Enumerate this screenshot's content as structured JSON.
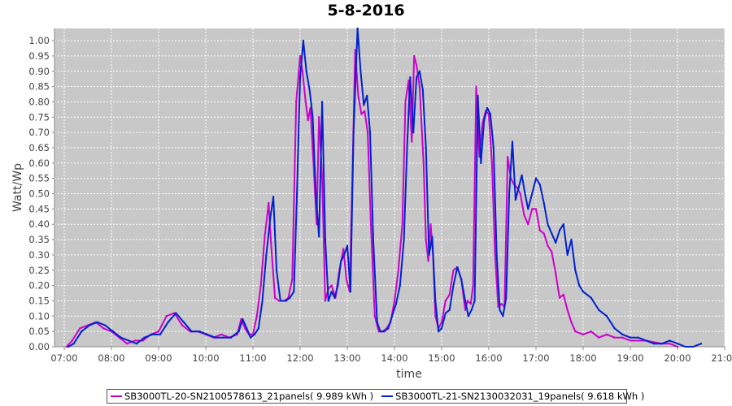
{
  "chart_data": {
    "type": "line",
    "title": "5-8-2016",
    "xlabel": "time",
    "ylabel": "Watt/Wp",
    "xlim": [
      "07:00",
      "21:00"
    ],
    "ylim": [
      0,
      1.04
    ],
    "x_ticks": [
      "07:00",
      "08:00",
      "09:00",
      "10:00",
      "11:00",
      "12:00",
      "13:00",
      "14:00",
      "15:00",
      "16:00",
      "17:00",
      "18:00",
      "19:00",
      "20:00",
      "21:00"
    ],
    "y_ticks": [
      "0.00",
      "0.05",
      "0.10",
      "0.15",
      "0.20",
      "0.25",
      "0.30",
      "0.35",
      "0.40",
      "0.45",
      "0.50",
      "0.55",
      "0.60",
      "0.65",
      "0.70",
      "0.75",
      "0.80",
      "0.85",
      "0.90",
      "0.95",
      "1.00"
    ],
    "grid": true,
    "legend_position": "bottom",
    "plot_background": "#c8c8c8",
    "series": [
      {
        "name": "SB3000TL-20-SN2100578613_21panels",
        "legend_label": "SB3000TL-20-SN2100578613_21panels( 9.989 kWh )",
        "color": "#cc00cc",
        "points": [
          [
            "07:03",
            0.0
          ],
          [
            "07:10",
            0.02
          ],
          [
            "07:20",
            0.06
          ],
          [
            "07:30",
            0.07
          ],
          [
            "07:40",
            0.08
          ],
          [
            "07:50",
            0.06
          ],
          [
            "08:00",
            0.05
          ],
          [
            "08:10",
            0.03
          ],
          [
            "08:20",
            0.01
          ],
          [
            "08:30",
            0.02
          ],
          [
            "08:40",
            0.02
          ],
          [
            "08:50",
            0.04
          ],
          [
            "09:00",
            0.05
          ],
          [
            "09:10",
            0.1
          ],
          [
            "09:20",
            0.11
          ],
          [
            "09:30",
            0.07
          ],
          [
            "09:40",
            0.05
          ],
          [
            "09:50",
            0.05
          ],
          [
            "10:00",
            0.04
          ],
          [
            "10:10",
            0.03
          ],
          [
            "10:20",
            0.04
          ],
          [
            "10:30",
            0.03
          ],
          [
            "10:40",
            0.04
          ],
          [
            "10:45",
            0.09
          ],
          [
            "10:50",
            0.06
          ],
          [
            "10:55",
            0.04
          ],
          [
            "11:00",
            0.04
          ],
          [
            "11:05",
            0.1
          ],
          [
            "11:10",
            0.2
          ],
          [
            "11:15",
            0.36
          ],
          [
            "11:20",
            0.47
          ],
          [
            "11:23",
            0.34
          ],
          [
            "11:28",
            0.16
          ],
          [
            "11:33",
            0.15
          ],
          [
            "11:40",
            0.15
          ],
          [
            "11:45",
            0.16
          ],
          [
            "11:50",
            0.22
          ],
          [
            "11:55",
            0.8
          ],
          [
            "12:00",
            0.95
          ],
          [
            "12:03",
            0.9
          ],
          [
            "12:07",
            0.8
          ],
          [
            "12:10",
            0.74
          ],
          [
            "12:13",
            0.78
          ],
          [
            "12:17",
            0.6
          ],
          [
            "12:21",
            0.4
          ],
          [
            "12:24",
            0.75
          ],
          [
            "12:28",
            0.55
          ],
          [
            "12:32",
            0.15
          ],
          [
            "12:36",
            0.19
          ],
          [
            "12:40",
            0.2
          ],
          [
            "12:45",
            0.16
          ],
          [
            "12:50",
            0.25
          ],
          [
            "12:55",
            0.32
          ],
          [
            "12:59",
            0.22
          ],
          [
            "13:03",
            0.18
          ],
          [
            "13:06",
            0.5
          ],
          [
            "13:10",
            0.97
          ],
          [
            "13:14",
            0.82
          ],
          [
            "13:18",
            0.76
          ],
          [
            "13:22",
            0.77
          ],
          [
            "13:26",
            0.7
          ],
          [
            "13:30",
            0.4
          ],
          [
            "13:35",
            0.1
          ],
          [
            "13:40",
            0.05
          ],
          [
            "13:45",
            0.05
          ],
          [
            "13:50",
            0.06
          ],
          [
            "13:55",
            0.08
          ],
          [
            "14:00",
            0.15
          ],
          [
            "14:05",
            0.25
          ],
          [
            "14:10",
            0.4
          ],
          [
            "14:14",
            0.8
          ],
          [
            "14:18",
            0.87
          ],
          [
            "14:22",
            0.67
          ],
          [
            "14:25",
            0.95
          ],
          [
            "14:28",
            0.92
          ],
          [
            "14:32",
            0.85
          ],
          [
            "14:37",
            0.6
          ],
          [
            "14:40",
            0.35
          ],
          [
            "14:43",
            0.28
          ],
          [
            "14:46",
            0.4
          ],
          [
            "14:49",
            0.3
          ],
          [
            "14:52",
            0.1
          ],
          [
            "14:56",
            0.06
          ],
          [
            "15:00",
            0.08
          ],
          [
            "15:05",
            0.15
          ],
          [
            "15:10",
            0.17
          ],
          [
            "15:15",
            0.25
          ],
          [
            "15:20",
            0.26
          ],
          [
            "15:25",
            0.22
          ],
          [
            "15:30",
            0.12
          ],
          [
            "15:33",
            0.15
          ],
          [
            "15:37",
            0.14
          ],
          [
            "15:40",
            0.2
          ],
          [
            "15:44",
            0.85
          ],
          [
            "15:48",
            0.62
          ],
          [
            "15:52",
            0.73
          ],
          [
            "15:56",
            0.77
          ],
          [
            "16:00",
            0.76
          ],
          [
            "16:04",
            0.6
          ],
          [
            "16:08",
            0.3
          ],
          [
            "16:12",
            0.13
          ],
          [
            "16:16",
            0.14
          ],
          [
            "16:20",
            0.13
          ],
          [
            "16:24",
            0.62
          ],
          [
            "16:28",
            0.55
          ],
          [
            "16:32",
            0.53
          ],
          [
            "16:36",
            0.52
          ],
          [
            "16:40",
            0.5
          ],
          [
            "16:45",
            0.43
          ],
          [
            "16:50",
            0.4
          ],
          [
            "16:55",
            0.45
          ],
          [
            "17:00",
            0.45
          ],
          [
            "17:05",
            0.38
          ],
          [
            "17:10",
            0.37
          ],
          [
            "17:15",
            0.33
          ],
          [
            "17:20",
            0.31
          ],
          [
            "17:25",
            0.24
          ],
          [
            "17:30",
            0.16
          ],
          [
            "17:35",
            0.17
          ],
          [
            "17:40",
            0.12
          ],
          [
            "17:45",
            0.08
          ],
          [
            "17:50",
            0.05
          ],
          [
            "18:00",
            0.04
          ],
          [
            "18:10",
            0.05
          ],
          [
            "18:20",
            0.03
          ],
          [
            "18:30",
            0.04
          ],
          [
            "18:40",
            0.03
          ],
          [
            "18:50",
            0.03
          ],
          [
            "19:00",
            0.02
          ],
          [
            "19:20",
            0.02
          ],
          [
            "19:40",
            0.01
          ],
          [
            "19:50",
            0.01
          ],
          [
            "20:00",
            0.0
          ]
        ]
      },
      {
        "name": "SB3000TL-21-SN2130032031_19panels",
        "legend_label": "SB3000TL-21-SN2130032031_19panels( 9.618 kWh )",
        "color": "#0022cc",
        "points": [
          [
            "07:05",
            0.0
          ],
          [
            "07:12",
            0.01
          ],
          [
            "07:22",
            0.05
          ],
          [
            "07:32",
            0.07
          ],
          [
            "07:42",
            0.08
          ],
          [
            "07:52",
            0.07
          ],
          [
            "08:02",
            0.05
          ],
          [
            "08:12",
            0.03
          ],
          [
            "08:22",
            0.02
          ],
          [
            "08:32",
            0.01
          ],
          [
            "08:42",
            0.03
          ],
          [
            "08:52",
            0.04
          ],
          [
            "09:02",
            0.04
          ],
          [
            "09:12",
            0.08
          ],
          [
            "09:22",
            0.11
          ],
          [
            "09:32",
            0.08
          ],
          [
            "09:42",
            0.05
          ],
          [
            "09:52",
            0.05
          ],
          [
            "10:02",
            0.04
          ],
          [
            "10:12",
            0.03
          ],
          [
            "10:22",
            0.03
          ],
          [
            "10:32",
            0.03
          ],
          [
            "10:42",
            0.05
          ],
          [
            "10:47",
            0.09
          ],
          [
            "10:52",
            0.06
          ],
          [
            "10:57",
            0.03
          ],
          [
            "11:02",
            0.04
          ],
          [
            "11:07",
            0.06
          ],
          [
            "11:12",
            0.15
          ],
          [
            "11:17",
            0.3
          ],
          [
            "11:22",
            0.42
          ],
          [
            "11:26",
            0.49
          ],
          [
            "11:30",
            0.25
          ],
          [
            "11:35",
            0.15
          ],
          [
            "11:42",
            0.15
          ],
          [
            "11:47",
            0.16
          ],
          [
            "11:52",
            0.18
          ],
          [
            "11:56",
            0.5
          ],
          [
            "12:00",
            0.88
          ],
          [
            "12:04",
            1.0
          ],
          [
            "12:08",
            0.9
          ],
          [
            "12:12",
            0.84
          ],
          [
            "12:16",
            0.75
          ],
          [
            "12:20",
            0.5
          ],
          [
            "12:24",
            0.36
          ],
          [
            "12:28",
            0.8
          ],
          [
            "12:32",
            0.35
          ],
          [
            "12:36",
            0.15
          ],
          [
            "12:40",
            0.18
          ],
          [
            "12:44",
            0.16
          ],
          [
            "12:48",
            0.2
          ],
          [
            "12:52",
            0.28
          ],
          [
            "12:56",
            0.3
          ],
          [
            "13:00",
            0.33
          ],
          [
            "13:04",
            0.18
          ],
          [
            "13:08",
            0.7
          ],
          [
            "13:13",
            1.04
          ],
          [
            "13:17",
            0.9
          ],
          [
            "13:21",
            0.79
          ],
          [
            "13:25",
            0.82
          ],
          [
            "13:29",
            0.7
          ],
          [
            "13:33",
            0.35
          ],
          [
            "13:38",
            0.08
          ],
          [
            "13:42",
            0.05
          ],
          [
            "13:47",
            0.05
          ],
          [
            "13:52",
            0.06
          ],
          [
            "13:57",
            0.1
          ],
          [
            "14:02",
            0.14
          ],
          [
            "14:07",
            0.2
          ],
          [
            "14:12",
            0.35
          ],
          [
            "14:16",
            0.65
          ],
          [
            "14:20",
            0.88
          ],
          [
            "14:24",
            0.7
          ],
          [
            "14:28",
            0.88
          ],
          [
            "14:32",
            0.9
          ],
          [
            "14:36",
            0.84
          ],
          [
            "14:40",
            0.65
          ],
          [
            "14:44",
            0.3
          ],
          [
            "14:48",
            0.36
          ],
          [
            "14:52",
            0.15
          ],
          [
            "14:56",
            0.05
          ],
          [
            "15:00",
            0.06
          ],
          [
            "15:05",
            0.11
          ],
          [
            "15:10",
            0.12
          ],
          [
            "15:15",
            0.2
          ],
          [
            "15:20",
            0.26
          ],
          [
            "15:25",
            0.22
          ],
          [
            "15:30",
            0.15
          ],
          [
            "15:34",
            0.1
          ],
          [
            "15:38",
            0.12
          ],
          [
            "15:42",
            0.15
          ],
          [
            "15:46",
            0.82
          ],
          [
            "15:50",
            0.6
          ],
          [
            "15:54",
            0.74
          ],
          [
            "15:58",
            0.78
          ],
          [
            "16:02",
            0.76
          ],
          [
            "16:06",
            0.65
          ],
          [
            "16:10",
            0.3
          ],
          [
            "16:14",
            0.12
          ],
          [
            "16:18",
            0.1
          ],
          [
            "16:22",
            0.16
          ],
          [
            "16:26",
            0.5
          ],
          [
            "16:30",
            0.67
          ],
          [
            "16:34",
            0.48
          ],
          [
            "16:38",
            0.52
          ],
          [
            "16:42",
            0.56
          ],
          [
            "16:46",
            0.5
          ],
          [
            "16:50",
            0.45
          ],
          [
            "16:55",
            0.5
          ],
          [
            "17:00",
            0.55
          ],
          [
            "17:05",
            0.53
          ],
          [
            "17:10",
            0.47
          ],
          [
            "17:15",
            0.4
          ],
          [
            "17:20",
            0.37
          ],
          [
            "17:25",
            0.34
          ],
          [
            "17:30",
            0.38
          ],
          [
            "17:35",
            0.4
          ],
          [
            "17:40",
            0.3
          ],
          [
            "17:45",
            0.35
          ],
          [
            "17:50",
            0.25
          ],
          [
            "17:55",
            0.2
          ],
          [
            "18:00",
            0.18
          ],
          [
            "18:10",
            0.16
          ],
          [
            "18:20",
            0.12
          ],
          [
            "18:30",
            0.1
          ],
          [
            "18:40",
            0.06
          ],
          [
            "18:50",
            0.04
          ],
          [
            "19:00",
            0.03
          ],
          [
            "19:10",
            0.03
          ],
          [
            "19:20",
            0.02
          ],
          [
            "19:30",
            0.01
          ],
          [
            "19:40",
            0.01
          ],
          [
            "19:50",
            0.02
          ],
          [
            "20:00",
            0.01
          ],
          [
            "20:10",
            0.0
          ],
          [
            "20:20",
            0.0
          ],
          [
            "20:30",
            0.01
          ]
        ]
      }
    ]
  }
}
